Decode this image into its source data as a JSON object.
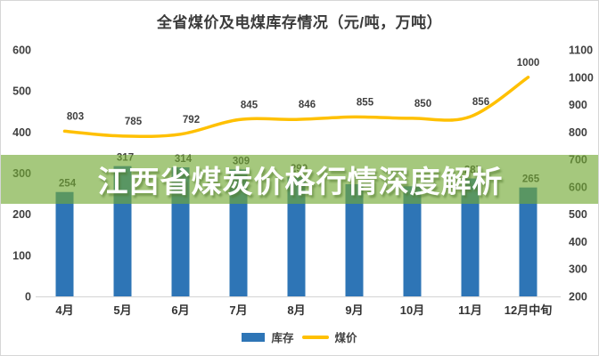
{
  "page": {
    "title": "全省煤价及电煤库存情况（元/吨，万吨）"
  },
  "banner": {
    "text": "江西省煤炭价格行情深度解析"
  },
  "colors": {
    "bar": "#2E75B6",
    "line": "#FFC000",
    "banner_bg": "rgba(114,169,52,0.64)",
    "axis_text": "#404040",
    "label_text": "#404040",
    "axis_line": "#D9D9D9"
  },
  "chart_data": {
    "type": "combo",
    "title": "全省煤价及电煤库存情况（元/吨，万吨）",
    "categories": [
      "4月",
      "5月",
      "6月",
      "7月",
      "8月",
      "9月",
      "10月",
      "11月",
      "12月中旬"
    ],
    "series": [
      {
        "name": "库存",
        "type": "bar",
        "axis": "left",
        "values": [
          254,
          317,
          314,
          309,
          290,
          273,
          268,
          287,
          265
        ],
        "data_labels": [
          "254",
          "317",
          "314",
          "309",
          "290",
          "",
          "",
          "287",
          "265"
        ]
      },
      {
        "name": "煤价",
        "type": "line",
        "axis": "right",
        "values": [
          803,
          785,
          792,
          845,
          846,
          855,
          850,
          856,
          1000
        ],
        "data_labels": [
          "803",
          "785",
          "792",
          "845",
          "846",
          "855",
          "850",
          "856",
          "1000"
        ]
      }
    ],
    "left_axis": {
      "min": 0,
      "max": 600,
      "step": 100,
      "ticks": [
        "0",
        "100",
        "200",
        "300",
        "400",
        "500",
        "600"
      ]
    },
    "right_axis": {
      "min": 200,
      "max": 1100,
      "step": 100,
      "ticks": [
        "200",
        "300",
        "400",
        "500",
        "600",
        "700",
        "800",
        "900",
        "1000",
        "1100"
      ]
    },
    "grid": false,
    "legend_position": "bottom"
  }
}
